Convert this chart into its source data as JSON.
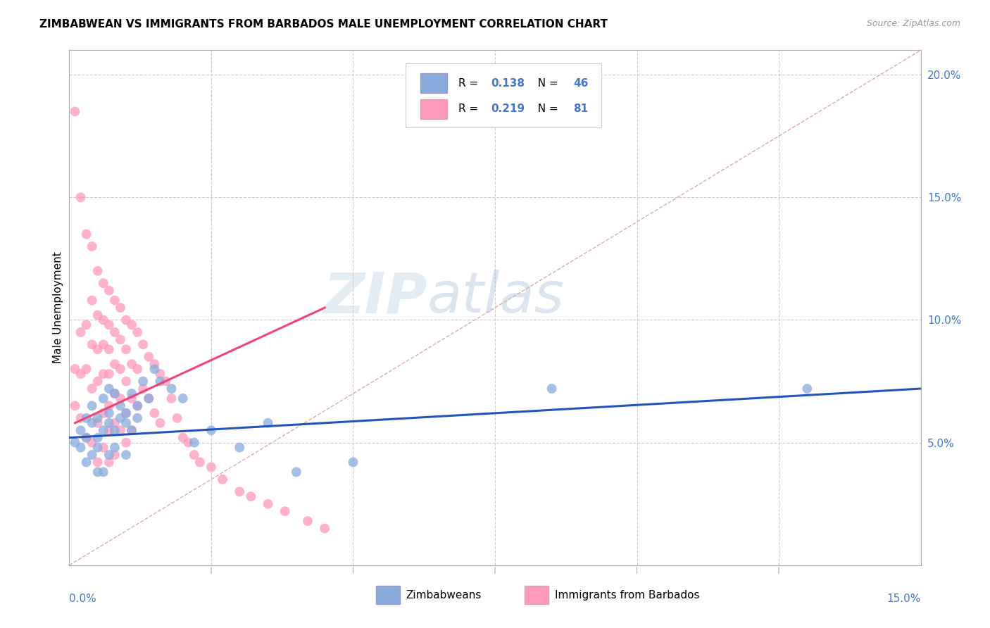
{
  "title": "ZIMBABWEAN VS IMMIGRANTS FROM BARBADOS MALE UNEMPLOYMENT CORRELATION CHART",
  "source": "Source: ZipAtlas.com",
  "ylabel": "Male Unemployment",
  "right_yticks": [
    "5.0%",
    "10.0%",
    "15.0%",
    "20.0%"
  ],
  "right_ytick_vals": [
    0.05,
    0.1,
    0.15,
    0.2
  ],
  "xmin": 0.0,
  "xmax": 0.15,
  "ymin": 0.0,
  "ymax": 0.21,
  "legend1_R": "0.138",
  "legend1_N": "46",
  "legend2_R": "0.219",
  "legend2_N": "81",
  "blue_color": "#88AADD",
  "pink_color": "#FF99BB",
  "blue_line_color": "#2255BB",
  "pink_line_color": "#EE4477",
  "diagonal_color": "#DDAAAA",
  "watermark_zip": "ZIP",
  "watermark_atlas": "atlas",
  "blue_scatter_x": [
    0.001,
    0.002,
    0.002,
    0.003,
    0.003,
    0.003,
    0.004,
    0.004,
    0.004,
    0.005,
    0.005,
    0.005,
    0.005,
    0.006,
    0.006,
    0.006,
    0.007,
    0.007,
    0.007,
    0.007,
    0.008,
    0.008,
    0.008,
    0.009,
    0.009,
    0.01,
    0.01,
    0.01,
    0.011,
    0.011,
    0.012,
    0.012,
    0.013,
    0.014,
    0.015,
    0.016,
    0.018,
    0.02,
    0.022,
    0.025,
    0.03,
    0.035,
    0.04,
    0.05,
    0.085,
    0.13
  ],
  "blue_scatter_y": [
    0.05,
    0.048,
    0.055,
    0.052,
    0.06,
    0.042,
    0.058,
    0.045,
    0.065,
    0.048,
    0.052,
    0.06,
    0.038,
    0.055,
    0.068,
    0.038,
    0.058,
    0.062,
    0.045,
    0.072,
    0.07,
    0.055,
    0.048,
    0.065,
    0.06,
    0.058,
    0.062,
    0.045,
    0.07,
    0.055,
    0.065,
    0.06,
    0.075,
    0.068,
    0.08,
    0.075,
    0.072,
    0.068,
    0.05,
    0.055,
    0.048,
    0.058,
    0.038,
    0.042,
    0.072,
    0.072
  ],
  "pink_scatter_x": [
    0.001,
    0.001,
    0.001,
    0.002,
    0.002,
    0.002,
    0.002,
    0.003,
    0.003,
    0.003,
    0.003,
    0.004,
    0.004,
    0.004,
    0.004,
    0.004,
    0.005,
    0.005,
    0.005,
    0.005,
    0.005,
    0.005,
    0.006,
    0.006,
    0.006,
    0.006,
    0.006,
    0.006,
    0.007,
    0.007,
    0.007,
    0.007,
    0.007,
    0.007,
    0.007,
    0.008,
    0.008,
    0.008,
    0.008,
    0.008,
    0.008,
    0.009,
    0.009,
    0.009,
    0.009,
    0.009,
    0.01,
    0.01,
    0.01,
    0.01,
    0.01,
    0.011,
    0.011,
    0.011,
    0.011,
    0.012,
    0.012,
    0.012,
    0.013,
    0.013,
    0.014,
    0.014,
    0.015,
    0.015,
    0.016,
    0.016,
    0.017,
    0.018,
    0.019,
    0.02,
    0.021,
    0.022,
    0.023,
    0.025,
    0.027,
    0.03,
    0.032,
    0.035,
    0.038,
    0.042,
    0.045
  ],
  "pink_scatter_y": [
    0.185,
    0.08,
    0.065,
    0.15,
    0.095,
    0.078,
    0.06,
    0.135,
    0.098,
    0.08,
    0.052,
    0.13,
    0.108,
    0.09,
    0.072,
    0.05,
    0.12,
    0.102,
    0.088,
    0.075,
    0.058,
    0.042,
    0.115,
    0.1,
    0.09,
    0.078,
    0.062,
    0.048,
    0.112,
    0.098,
    0.088,
    0.078,
    0.065,
    0.055,
    0.042,
    0.108,
    0.095,
    0.082,
    0.07,
    0.058,
    0.045,
    0.105,
    0.092,
    0.08,
    0.068,
    0.055,
    0.1,
    0.088,
    0.075,
    0.062,
    0.05,
    0.098,
    0.082,
    0.068,
    0.055,
    0.095,
    0.08,
    0.065,
    0.09,
    0.072,
    0.085,
    0.068,
    0.082,
    0.062,
    0.078,
    0.058,
    0.075,
    0.068,
    0.06,
    0.052,
    0.05,
    0.045,
    0.042,
    0.04,
    0.035,
    0.03,
    0.028,
    0.025,
    0.022,
    0.018,
    0.015
  ],
  "pink_trend_x": [
    0.001,
    0.045
  ],
  "pink_trend_y": [
    0.058,
    0.105
  ]
}
